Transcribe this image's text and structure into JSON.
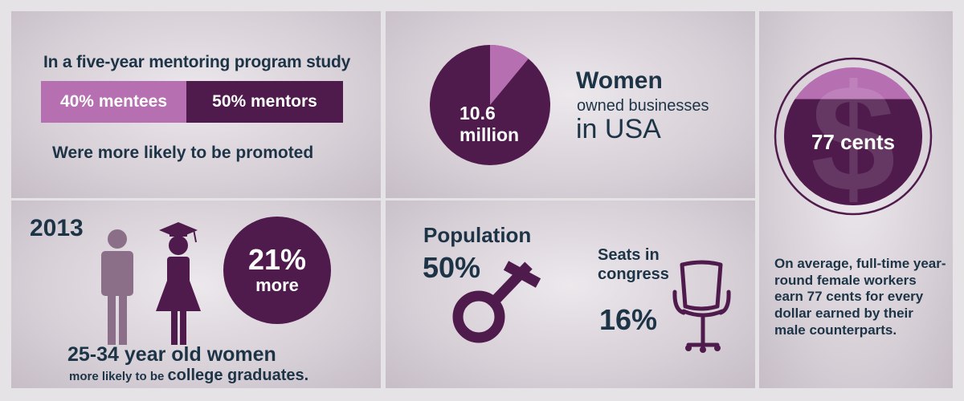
{
  "mentoring": {
    "heading": "In a five-year mentoring program study",
    "bars": [
      {
        "label": "40% mentees",
        "color": "#b66fb1"
      },
      {
        "label": "50% mentors",
        "color": "#4f1a4c"
      }
    ],
    "footer": "Were more likely to be promoted"
  },
  "business": {
    "pie_label_line1": "10.6",
    "pie_label_line2": "million",
    "pie_highlight_fraction": 0.11,
    "title_line1": "Women",
    "title_line2": "owned businesses",
    "title_line3": "in USA"
  },
  "wage": {
    "coin_label": "77 cents",
    "coin_fill_fraction": 0.77,
    "symbol": "$",
    "description": "On average, full-time year-round female workers earn 77 cents for every dollar earned by their male counterparts."
  },
  "graduates": {
    "year": "2013",
    "percent": "21%",
    "more": "more",
    "caption_line1": "25-34 year old women",
    "caption_line2_small": "more likely to be",
    "caption_line2_big": "college graduates."
  },
  "congress": {
    "population_label": "Population",
    "population_percent": "50%",
    "seats_line1": "Seats in",
    "seats_line2": "congress",
    "seats_percent": "16%"
  },
  "colors": {
    "plum": "#4f1a4c",
    "lilac": "#b66fb1",
    "navy": "#1d3447",
    "male_figure": "#8b6f88"
  },
  "icons": [
    "male-figure-icon",
    "graduate-woman-icon",
    "venus-symbol-icon",
    "office-chair-icon",
    "dollar-icon"
  ]
}
